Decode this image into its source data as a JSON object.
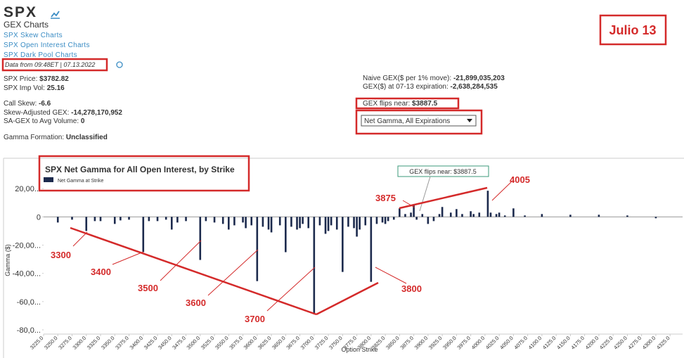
{
  "header": {
    "ticker": "SPX",
    "subtitle": "GEX Charts",
    "links": [
      "SPX Skew Charts",
      "SPX Open Interest Charts",
      "SPX Dark Pool Charts"
    ],
    "data_from": "Data from 09:48ET | ",
    "date": "07.13.2022",
    "badge": "Julio 13"
  },
  "stats_left": [
    {
      "label": "SPX Price: ",
      "value": "$3782.82"
    },
    {
      "label": "SPX Imp Vol: ",
      "value": "25.16"
    },
    {
      "label": "Call Skew: ",
      "value": "-6.6"
    },
    {
      "label": "Skew-Adjusted GEX: ",
      "value": "-14,278,170,952"
    },
    {
      "label": "SA-GEX to Avg Volume: ",
      "value": "0"
    },
    {
      "label": "Gamma Formation: ",
      "value": "Unclassified"
    }
  ],
  "stats_right": [
    {
      "label": "Naive GEX($ per 1% move): ",
      "value": "-21,899,035,203"
    },
    {
      "label": "GEX($) at 07-13 expiration: ",
      "value": "-2,638,284,535"
    },
    {
      "label": "GEX flips near: ",
      "value": "$3887.5"
    }
  ],
  "select": "Net Gamma, All Expirations",
  "annotations": [
    "3300",
    "3400",
    "3500",
    "3600",
    "3700",
    "3800",
    "3875",
    "4005"
  ],
  "chart_data": {
    "type": "bar",
    "title": "SPX Net Gamma for All Open Interest, by Strike",
    "flip_note": "GEX flips near: $3887.5",
    "xlabel": "Option Strike",
    "ylabel": "Gamma ($)",
    "series": [
      {
        "name": "Net Gamma at Strike",
        "color": "#1c2a4d",
        "x": [
          3250,
          3275,
          3300,
          3315,
          3325,
          3350,
          3360,
          3375,
          3400,
          3410,
          3425,
          3440,
          3450,
          3460,
          3475,
          3500,
          3510,
          3525,
          3540,
          3550,
          3560,
          3575,
          3580,
          3590,
          3600,
          3610,
          3620,
          3625,
          3640,
          3650,
          3660,
          3670,
          3675,
          3680,
          3690,
          3700,
          3710,
          3720,
          3725,
          3730,
          3740,
          3750,
          3760,
          3770,
          3775,
          3780,
          3790,
          3800,
          3810,
          3820,
          3825,
          3830,
          3840,
          3850,
          3860,
          3870,
          3875,
          3880,
          3890,
          3900,
          3910,
          3920,
          3925,
          3940,
          3950,
          3960,
          3975,
          3980,
          3990,
          4005,
          4010,
          4020,
          4025,
          4035,
          4050,
          4070,
          4100,
          4150,
          4200,
          4250,
          4300
        ],
        "values": [
          -4000,
          -2000,
          -10000,
          -3000,
          -3000,
          -5000,
          -2500,
          -2000,
          -25000,
          -3000,
          -3000,
          -2000,
          -9000,
          -4000,
          -3000,
          -30500,
          -3000,
          -4000,
          -5000,
          -9000,
          -6000,
          -4000,
          -8000,
          -6000,
          -45500,
          -7000,
          -9000,
          -11000,
          -6000,
          -25000,
          -7000,
          -9000,
          -8000,
          -5000,
          -8000,
          -69000,
          -6000,
          -12000,
          -10000,
          -6000,
          -9000,
          -39000,
          -7000,
          -8000,
          -14000,
          -9000,
          -6000,
          -46000,
          -5000,
          -4000,
          -5000,
          -3000,
          -2000,
          6000,
          2000,
          3000,
          9000,
          -2000,
          2000,
          -5000,
          -3000,
          2000,
          7000,
          3000,
          5500,
          2000,
          4000,
          2000,
          3000,
          18500,
          3000,
          2000,
          3000,
          1000,
          6000,
          1000,
          2000,
          1500,
          1500,
          1000,
          -1000
        ]
      }
    ],
    "xlim": [
      3225,
      4347
    ],
    "xticks": [
      {
        "value": 3225,
        "label": "3225.0"
      },
      {
        "value": 3250,
        "label": "3250.0"
      },
      {
        "value": 3275,
        "label": "3275.0"
      },
      {
        "value": 3300,
        "label": "3300.0"
      },
      {
        "value": 3325,
        "label": "3325.0"
      },
      {
        "value": 3350,
        "label": "3350.0"
      },
      {
        "value": 3375,
        "label": "3375.0"
      },
      {
        "value": 3400,
        "label": "3400.0"
      },
      {
        "value": 3425,
        "label": "3425.0"
      },
      {
        "value": 3450,
        "label": "3450.0"
      },
      {
        "value": 3475,
        "label": "3475.0"
      },
      {
        "value": 3500,
        "label": "3500.0"
      },
      {
        "value": 3525,
        "label": "3525.0"
      },
      {
        "value": 3550,
        "label": "3550.0"
      },
      {
        "value": 3575,
        "label": "3575.0"
      },
      {
        "value": 3600,
        "label": "3600.0"
      },
      {
        "value": 3625,
        "label": "3625.0"
      },
      {
        "value": 3650,
        "label": "3650.0"
      },
      {
        "value": 3675,
        "label": "3675.0"
      },
      {
        "value": 3700,
        "label": "3700.0"
      },
      {
        "value": 3725,
        "label": "3725.0"
      },
      {
        "value": 3750,
        "label": "3750.0"
      },
      {
        "value": 3775,
        "label": "3775.0"
      },
      {
        "value": 3800,
        "label": "3800.0"
      },
      {
        "value": 3825,
        "label": "3825.0"
      },
      {
        "value": 3850,
        "label": "3850.0"
      },
      {
        "value": 3875,
        "label": "3875.0"
      },
      {
        "value": 3900,
        "label": "3900.0"
      },
      {
        "value": 3925,
        "label": "3925.0"
      },
      {
        "value": 3950,
        "label": "3950.0"
      },
      {
        "value": 3975,
        "label": "3975.0"
      },
      {
        "value": 4000,
        "label": "4000.0"
      },
      {
        "value": 4025,
        "label": "4025.0"
      },
      {
        "value": 4050,
        "label": "4050.0"
      },
      {
        "value": 4075,
        "label": "4075.0"
      },
      {
        "value": 4100,
        "label": "4100.0"
      },
      {
        "value": 4125,
        "label": "4125.0"
      },
      {
        "value": 4150,
        "label": "4150.0"
      },
      {
        "value": 4175,
        "label": "4175.0"
      },
      {
        "value": 4200,
        "label": "4200.0"
      },
      {
        "value": 4225,
        "label": "4225.0"
      },
      {
        "value": 4250,
        "label": "4250.0"
      },
      {
        "value": 4275,
        "label": "4275.0"
      },
      {
        "value": 4300,
        "label": "4300.0"
      },
      {
        "value": 4325,
        "label": "4325.0"
      }
    ],
    "ylim": [
      -83000,
      40000
    ],
    "yticks": [
      {
        "value": 20000,
        "label": "20,00..."
      },
      0,
      {
        "value": -20000,
        "label": "-20,00..."
      },
      {
        "value": -40000,
        "label": "-40,00..."
      },
      {
        "value": -60000,
        "label": "-60,0..."
      },
      {
        "value": -80000,
        "label": "-80,0..."
      }
    ],
    "grid": false
  }
}
